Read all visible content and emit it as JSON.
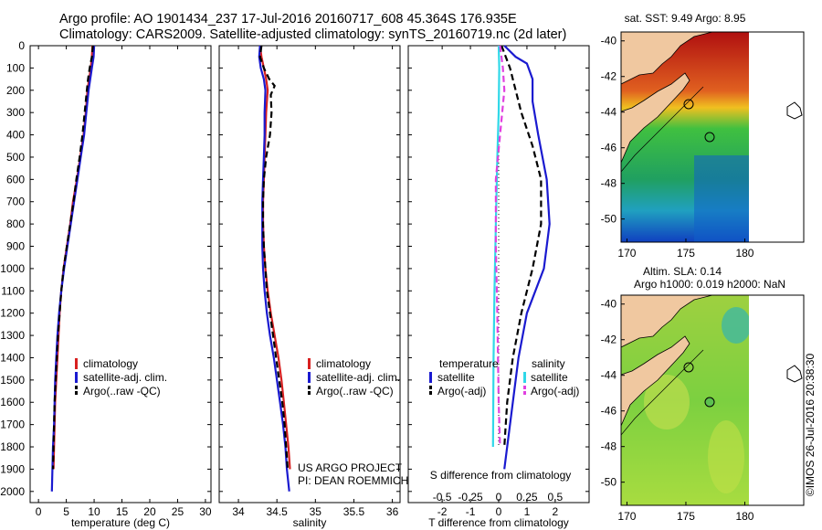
{
  "header": {
    "line1": "Argo profile: AO 1901434_237 17-Jul-2016 20160717_608 45.364S 176.935E",
    "line2": "Climatology: CARS2009. Satellite-adjusted climatology: synTS_20160719.nc (2d later)"
  },
  "credit": "US ARGO PROJECT",
  "pi": "PI: DEAN ROEMMICH",
  "stamp": "©IMOS 26-Jul-2016 20:38:30",
  "colors": {
    "climatology": "#d82020",
    "satellite": "#1a1ad0",
    "argo": "#000000",
    "sat_salinity": "#30d8e8",
    "argo_salinity": "#e040e0",
    "land": "#f0c8a0"
  },
  "depth_ticks": [
    "0",
    "100",
    "200",
    "300",
    "400",
    "500",
    "600",
    "700",
    "800",
    "900",
    "1000",
    "1100",
    "1200",
    "1300",
    "1400",
    "1500",
    "1600",
    "1700",
    "1800",
    "1900",
    "2000"
  ],
  "chart_data": [
    {
      "type": "line",
      "xlabel": "temperature (deg C)",
      "x_ticks": [
        "0",
        "5",
        "10",
        "15",
        "20",
        "25",
        "30"
      ],
      "xlim": [
        -1.5,
        31
      ],
      "ylim": [
        2050,
        0
      ],
      "legend": [
        "climatology",
        "satellite-adj. clim.",
        "Argo(..raw -QC)"
      ],
      "series": [
        {
          "name": "climatology",
          "style": "solid",
          "color": "#d82020",
          "points": [
            [
              9.7,
              0
            ],
            [
              9.6,
              50
            ],
            [
              9.4,
              100
            ],
            [
              9.1,
              150
            ],
            [
              8.8,
              200
            ],
            [
              8.5,
              300
            ],
            [
              8.1,
              400
            ],
            [
              7.5,
              500
            ],
            [
              6.9,
              600
            ],
            [
              6.2,
              700
            ],
            [
              5.7,
              800
            ],
            [
              5.1,
              900
            ],
            [
              4.5,
              1000
            ],
            [
              4.1,
              1100
            ],
            [
              3.8,
              1200
            ],
            [
              3.6,
              1300
            ],
            [
              3.4,
              1400
            ],
            [
              3.2,
              1500
            ],
            [
              3.0,
              1600
            ],
            [
              2.9,
              1700
            ],
            [
              2.8,
              1800
            ],
            [
              2.7,
              1900
            ]
          ]
        },
        {
          "name": "satellite-adj. clim.",
          "style": "solid",
          "color": "#1a1ad0",
          "points": [
            [
              10.0,
              0
            ],
            [
              9.9,
              50
            ],
            [
              9.6,
              100
            ],
            [
              9.3,
              150
            ],
            [
              9.0,
              200
            ],
            [
              8.6,
              300
            ],
            [
              8.2,
              400
            ],
            [
              7.6,
              500
            ],
            [
              7.0,
              600
            ],
            [
              6.4,
              700
            ],
            [
              5.8,
              800
            ],
            [
              5.2,
              900
            ],
            [
              4.6,
              1000
            ],
            [
              4.1,
              1100
            ],
            [
              3.7,
              1200
            ],
            [
              3.4,
              1300
            ],
            [
              3.2,
              1400
            ],
            [
              3.0,
              1500
            ],
            [
              2.9,
              1600
            ],
            [
              2.8,
              1700
            ],
            [
              2.6,
              1800
            ],
            [
              2.5,
              1900
            ],
            [
              2.4,
              2000
            ]
          ]
        },
        {
          "name": "Argo(..raw -QC)",
          "style": "dashed",
          "color": "#000000",
          "points": [
            [
              9.8,
              0
            ],
            [
              9.6,
              50
            ],
            [
              9.2,
              100
            ],
            [
              8.9,
              150
            ],
            [
              8.7,
              200
            ],
            [
              8.3,
              300
            ],
            [
              7.9,
              400
            ],
            [
              7.4,
              500
            ],
            [
              6.8,
              600
            ],
            [
              6.3,
              700
            ],
            [
              5.7,
              800
            ],
            [
              5.1,
              900
            ],
            [
              4.5,
              1000
            ],
            [
              4.1,
              1100
            ],
            [
              3.8,
              1200
            ],
            [
              3.5,
              1300
            ],
            [
              3.3,
              1400
            ],
            [
              3.1,
              1500
            ],
            [
              2.9,
              1600
            ],
            [
              2.8,
              1700
            ],
            [
              2.7,
              1800
            ],
            [
              2.6,
              1900
            ]
          ]
        }
      ]
    },
    {
      "type": "line",
      "xlabel": "salinity",
      "x_ticks": [
        "34",
        "34.5",
        "35",
        "35.5",
        "36"
      ],
      "xlim": [
        33.75,
        36.1
      ],
      "ylim": [
        2050,
        0
      ],
      "legend": [
        "climatology",
        "satellite-adj. clim.",
        "Argo(..raw -QC)"
      ],
      "series": [
        {
          "name": "climatology",
          "style": "solid",
          "color": "#d82020",
          "points": [
            [
              34.28,
              0
            ],
            [
              34.3,
              50
            ],
            [
              34.33,
              100
            ],
            [
              34.36,
              150
            ],
            [
              34.38,
              200
            ],
            [
              34.36,
              300
            ],
            [
              34.35,
              400
            ],
            [
              34.34,
              500
            ],
            [
              34.33,
              600
            ],
            [
              34.32,
              700
            ],
            [
              34.32,
              800
            ],
            [
              34.33,
              900
            ],
            [
              34.35,
              1000
            ],
            [
              34.38,
              1100
            ],
            [
              34.42,
              1200
            ],
            [
              34.47,
              1300
            ],
            [
              34.52,
              1400
            ],
            [
              34.56,
              1500
            ],
            [
              34.59,
              1600
            ],
            [
              34.62,
              1700
            ],
            [
              34.65,
              1800
            ],
            [
              34.67,
              1900
            ]
          ]
        },
        {
          "name": "satellite-adj. clim.",
          "style": "solid",
          "color": "#1a1ad0",
          "points": [
            [
              34.28,
              0
            ],
            [
              34.27,
              50
            ],
            [
              34.29,
              100
            ],
            [
              34.33,
              150
            ],
            [
              34.35,
              200
            ],
            [
              34.34,
              300
            ],
            [
              34.34,
              400
            ],
            [
              34.33,
              500
            ],
            [
              34.32,
              600
            ],
            [
              34.31,
              700
            ],
            [
              34.31,
              800
            ],
            [
              34.31,
              900
            ],
            [
              34.32,
              1000
            ],
            [
              34.34,
              1100
            ],
            [
              34.37,
              1200
            ],
            [
              34.41,
              1300
            ],
            [
              34.46,
              1400
            ],
            [
              34.5,
              1500
            ],
            [
              34.54,
              1600
            ],
            [
              34.58,
              1700
            ],
            [
              34.61,
              1800
            ],
            [
              34.63,
              1900
            ],
            [
              34.66,
              2000
            ]
          ]
        },
        {
          "name": "Argo(..raw -QC)",
          "style": "dashed",
          "color": "#000000",
          "points": [
            [
              34.3,
              0
            ],
            [
              34.28,
              50
            ],
            [
              34.33,
              100
            ],
            [
              34.4,
              150
            ],
            [
              34.47,
              180
            ],
            [
              34.42,
              220
            ],
            [
              34.43,
              300
            ],
            [
              34.41,
              400
            ],
            [
              34.36,
              500
            ],
            [
              34.33,
              600
            ],
            [
              34.32,
              700
            ],
            [
              34.32,
              800
            ],
            [
              34.33,
              900
            ],
            [
              34.35,
              1000
            ],
            [
              34.37,
              1100
            ],
            [
              34.41,
              1200
            ],
            [
              34.45,
              1300
            ],
            [
              34.49,
              1400
            ],
            [
              34.53,
              1500
            ],
            [
              34.57,
              1600
            ],
            [
              34.6,
              1700
            ],
            [
              34.62,
              1800
            ],
            [
              34.64,
              1900
            ]
          ]
        }
      ]
    },
    {
      "type": "line",
      "title": "S difference from climatology",
      "xlabel": "T difference from climatology",
      "x_ticks_top": [
        "-0.5",
        "-0.25",
        "0",
        "0.25",
        "0.5"
      ],
      "x_ticks": [
        "-2",
        "-1",
        "0",
        "1",
        "2"
      ],
      "xlim": [
        -3.2,
        3.2
      ],
      "ylim": [
        2050,
        0
      ],
      "legend": {
        "temperature": {
          "heading": "temperature",
          "items": [
            "satellite",
            "Argo(-adj)"
          ]
        },
        "salinity": {
          "heading": "salinity",
          "items": [
            "satellite",
            "Argo(-adj)"
          ]
        }
      },
      "series": [
        {
          "name": "temperature satellite",
          "style": "solid",
          "color": "#1a1ad0",
          "points": [
            [
              0.2,
              0
            ],
            [
              0.6,
              50
            ],
            [
              1.0,
              80
            ],
            [
              1.2,
              150
            ],
            [
              1.2,
              250
            ],
            [
              1.4,
              400
            ],
            [
              1.7,
              600
            ],
            [
              1.8,
              800
            ],
            [
              1.6,
              1000
            ],
            [
              1.0,
              1200
            ],
            [
              0.7,
              1400
            ],
            [
              0.5,
              1600
            ],
            [
              0.3,
              1800
            ],
            [
              0.2,
              1900
            ]
          ]
        },
        {
          "name": "temperature Argo(-adj)",
          "style": "dashed",
          "color": "#000000",
          "points": [
            [
              0.1,
              0
            ],
            [
              0.4,
              100
            ],
            [
              0.8,
              300
            ],
            [
              1.2,
              450
            ],
            [
              1.5,
              600
            ],
            [
              1.5,
              800
            ],
            [
              1.2,
              1000
            ],
            [
              0.8,
              1200
            ],
            [
              0.5,
              1400
            ],
            [
              0.3,
              1600
            ],
            [
              0.2,
              1800
            ]
          ]
        },
        {
          "name": "salinity satellite",
          "style": "solid",
          "color": "#30d8e8",
          "points": [
            [
              0.0,
              0
            ],
            [
              0.02,
              100
            ],
            [
              0.0,
              300
            ],
            [
              -0.05,
              500
            ],
            [
              -0.1,
              800
            ],
            [
              -0.15,
              1100
            ],
            [
              -0.18,
              1400
            ],
            [
              -0.2,
              1800
            ]
          ]
        },
        {
          "name": "salinity Argo(-adj)",
          "style": "dashed",
          "color": "#e040e0",
          "points": [
            [
              0.05,
              0
            ],
            [
              0.15,
              100
            ],
            [
              0.2,
              200
            ],
            [
              0.05,
              400
            ],
            [
              -0.1,
              600
            ],
            [
              -0.1,
              900
            ],
            [
              -0.05,
              1200
            ],
            [
              0.0,
              1600
            ],
            [
              0.05,
              1800
            ]
          ]
        }
      ]
    },
    {
      "type": "heatmap",
      "title": "sat. SST: 9.49 Argo: 8.95",
      "x_ticks": [
        "170",
        "175",
        "180"
      ],
      "y_ticks": [
        "-40",
        "-42",
        "-44",
        "-46",
        "-48",
        "-50"
      ],
      "xlim": [
        169.5,
        185
      ],
      "ylim": [
        -51.3,
        -39.5
      ]
    },
    {
      "type": "heatmap",
      "title_line1": "Altim. SLA: 0.14",
      "title_line2": "Argo h1000: 0.019 h2000: NaN",
      "x_ticks": [
        "170",
        "175",
        "180"
      ],
      "y_ticks": [
        "-40",
        "-42",
        "-44",
        "-46",
        "-48",
        "-50"
      ],
      "xlim": [
        169.5,
        185
      ],
      "ylim": [
        -51.3,
        -39.5
      ]
    }
  ]
}
